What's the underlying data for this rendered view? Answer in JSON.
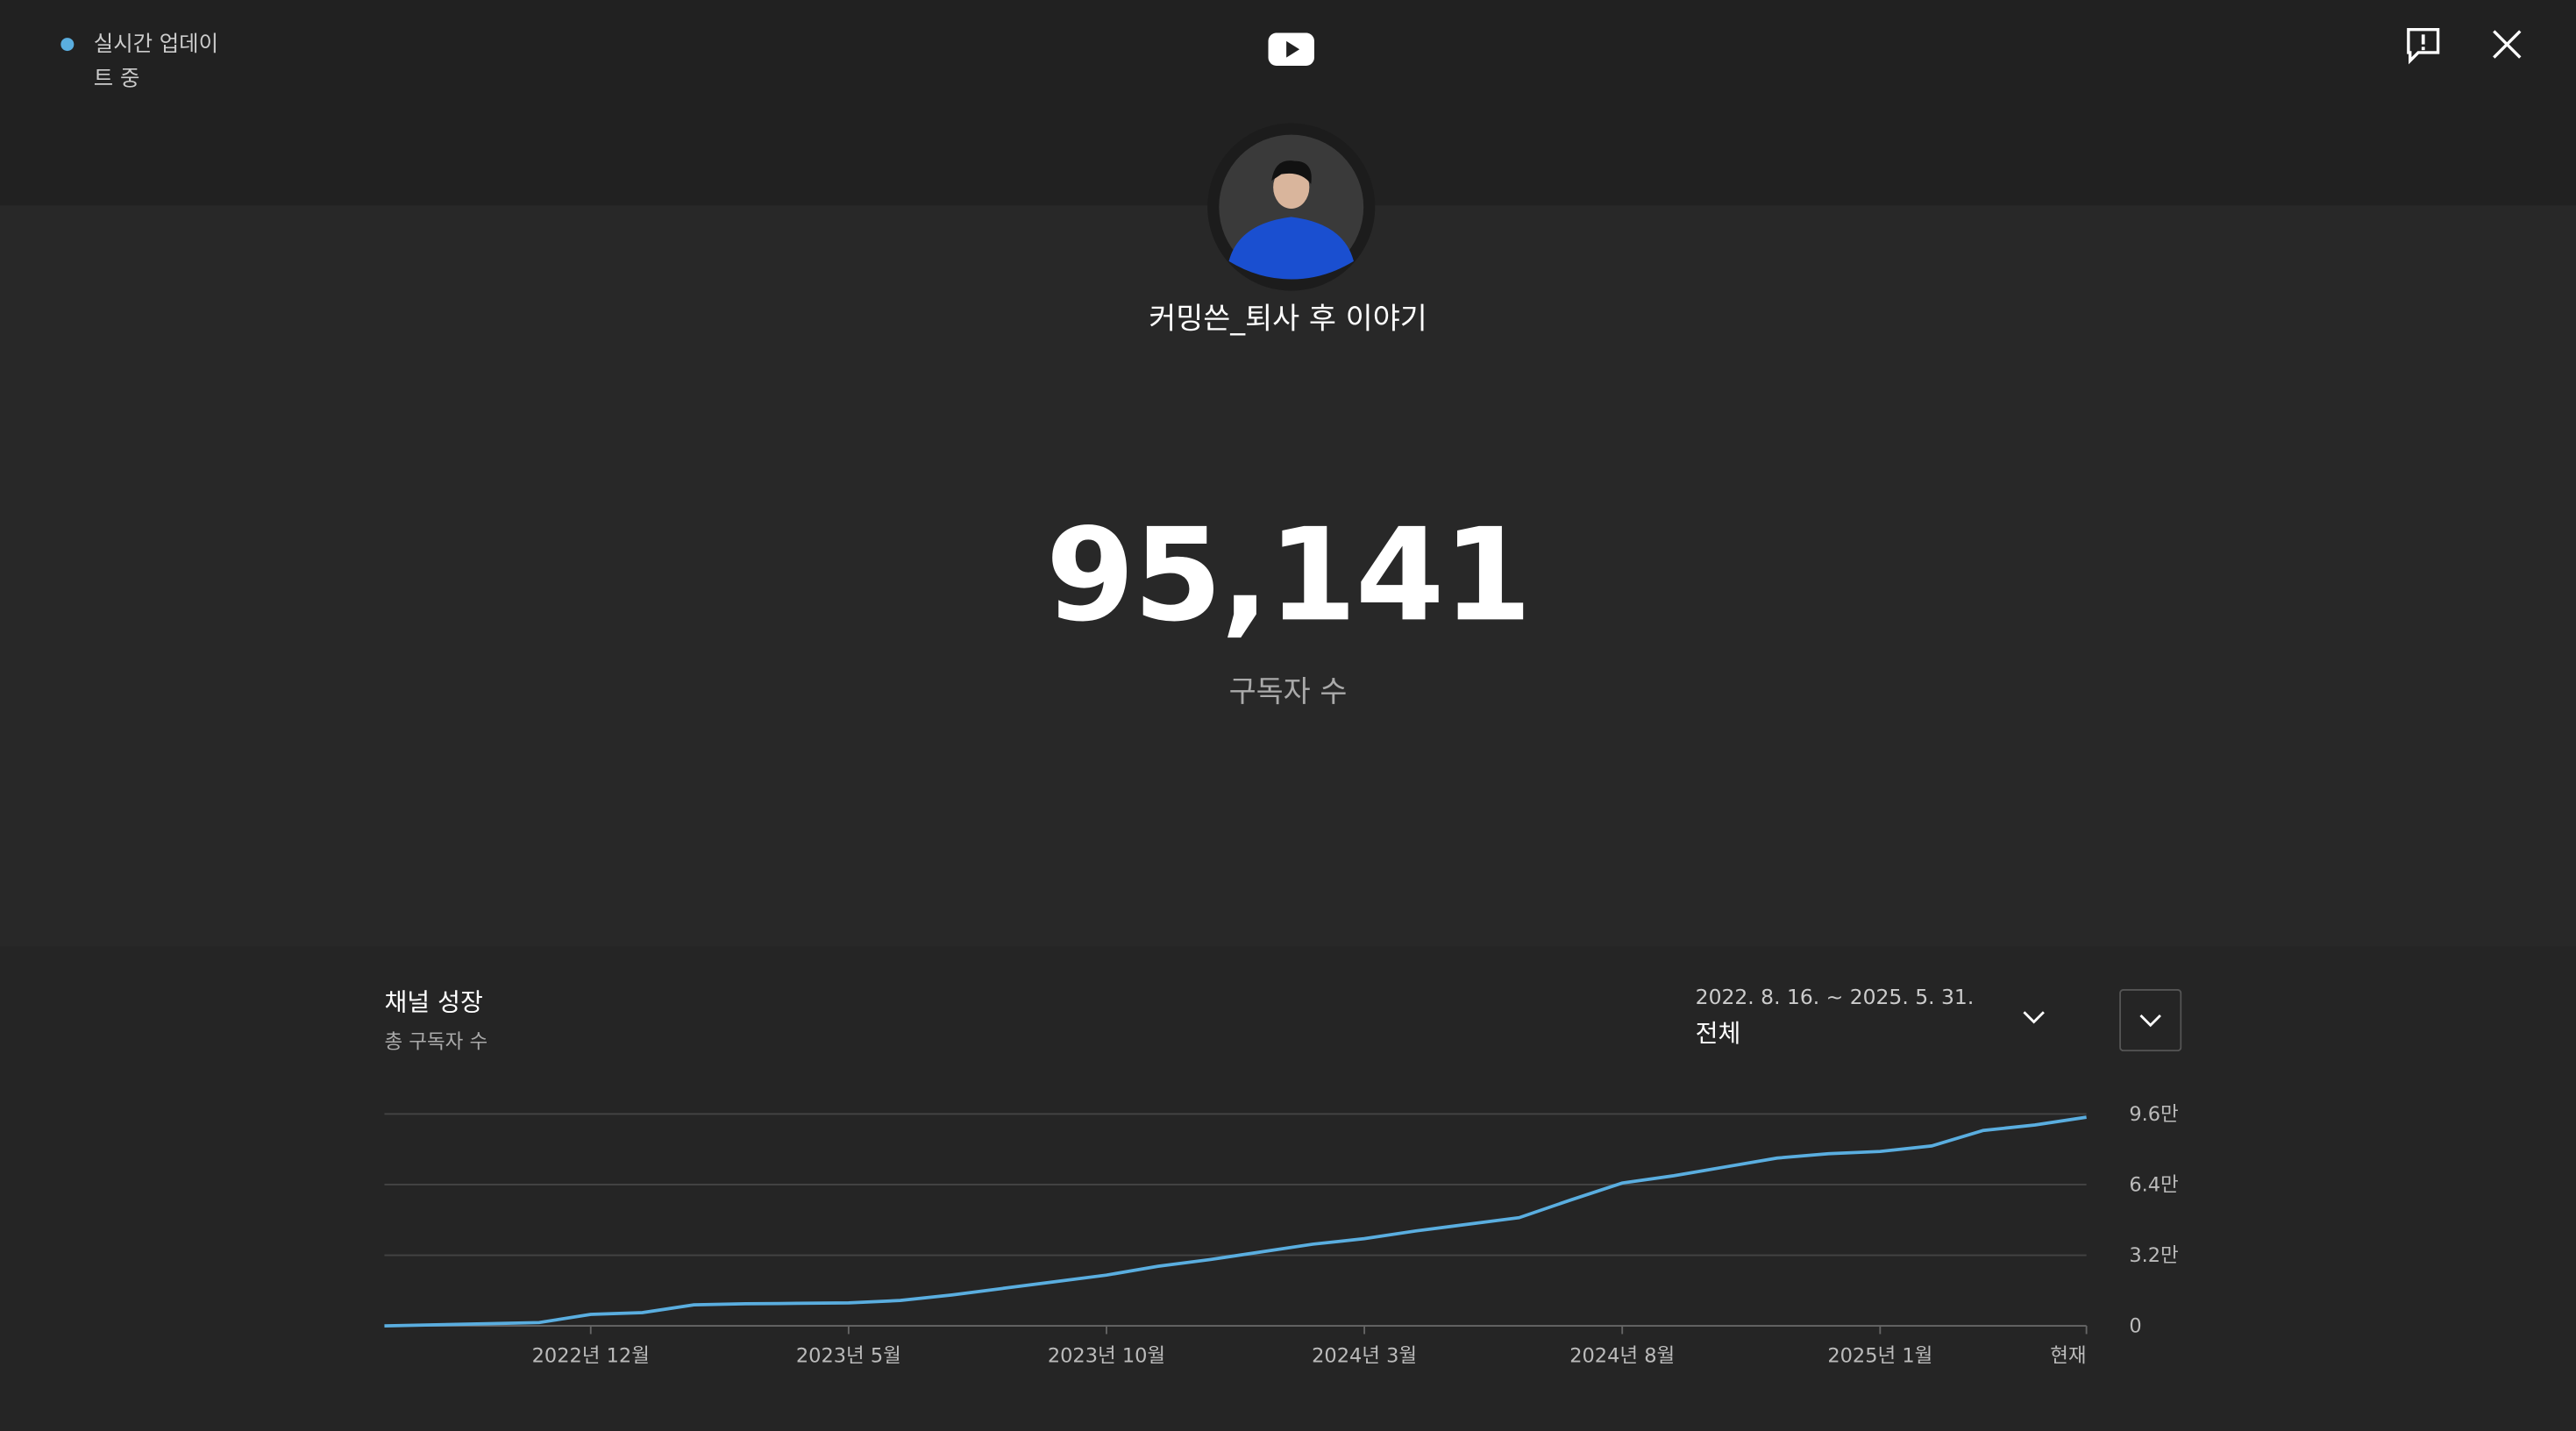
{
  "header": {
    "live_status": "실시간 업데이트 중"
  },
  "channel": {
    "name": "커밍쓴_퇴사 후 이야기",
    "subscriber_count": "95,141",
    "subscriber_label": "구독자 수"
  },
  "panel": {
    "title": "채널 성장",
    "subtitle": "총 구독자 수",
    "date_range": "2022. 8. 16. ~ 2025. 5. 31.",
    "period": "전체"
  },
  "chart_data": {
    "type": "line",
    "x": [
      "2022-08",
      "2022-09",
      "2022-10",
      "2022-11",
      "2022-12",
      "2023-01",
      "2023-02",
      "2023-03",
      "2023-04",
      "2023-05",
      "2023-06",
      "2023-07",
      "2023-08",
      "2023-09",
      "2023-10",
      "2023-11",
      "2023-12",
      "2024-01",
      "2024-02",
      "2024-03",
      "2024-04",
      "2024-05",
      "2024-06",
      "2024-07",
      "2024-08",
      "2024-09",
      "2024-10",
      "2024-11",
      "2024-12",
      "2025-01",
      "2025-02",
      "2025-03",
      "2025-04",
      "2025-05"
    ],
    "values": [
      0,
      500,
      1000,
      1500,
      5200,
      6000,
      9500,
      10000,
      10200,
      10400,
      11500,
      14000,
      17000,
      20000,
      23000,
      27000,
      30000,
      33500,
      37000,
      39500,
      43000,
      46000,
      49000,
      57000,
      64700,
      68000,
      72000,
      76000,
      78000,
      79000,
      81500,
      88500,
      91000,
      94500
    ],
    "color": "#5aaee0",
    "ylim": [
      0,
      96000
    ],
    "yticks": [
      {
        "value": 0,
        "label": "0"
      },
      {
        "value": 32000,
        "label": "3.2만"
      },
      {
        "value": 64000,
        "label": "6.4만"
      },
      {
        "value": 96000,
        "label": "9.6만"
      }
    ],
    "xticks": [
      {
        "value": "2022-12",
        "label": "2022년 12월"
      },
      {
        "value": "2023-05",
        "label": "2023년 5월"
      },
      {
        "value": "2023-10",
        "label": "2023년 10월"
      },
      {
        "value": "2024-03",
        "label": "2024년 3월"
      },
      {
        "value": "2024-08",
        "label": "2024년 8월"
      },
      {
        "value": "2025-01",
        "label": "2025년 1월"
      },
      {
        "value": "2025-05",
        "label": "현재"
      }
    ],
    "grid": true
  }
}
